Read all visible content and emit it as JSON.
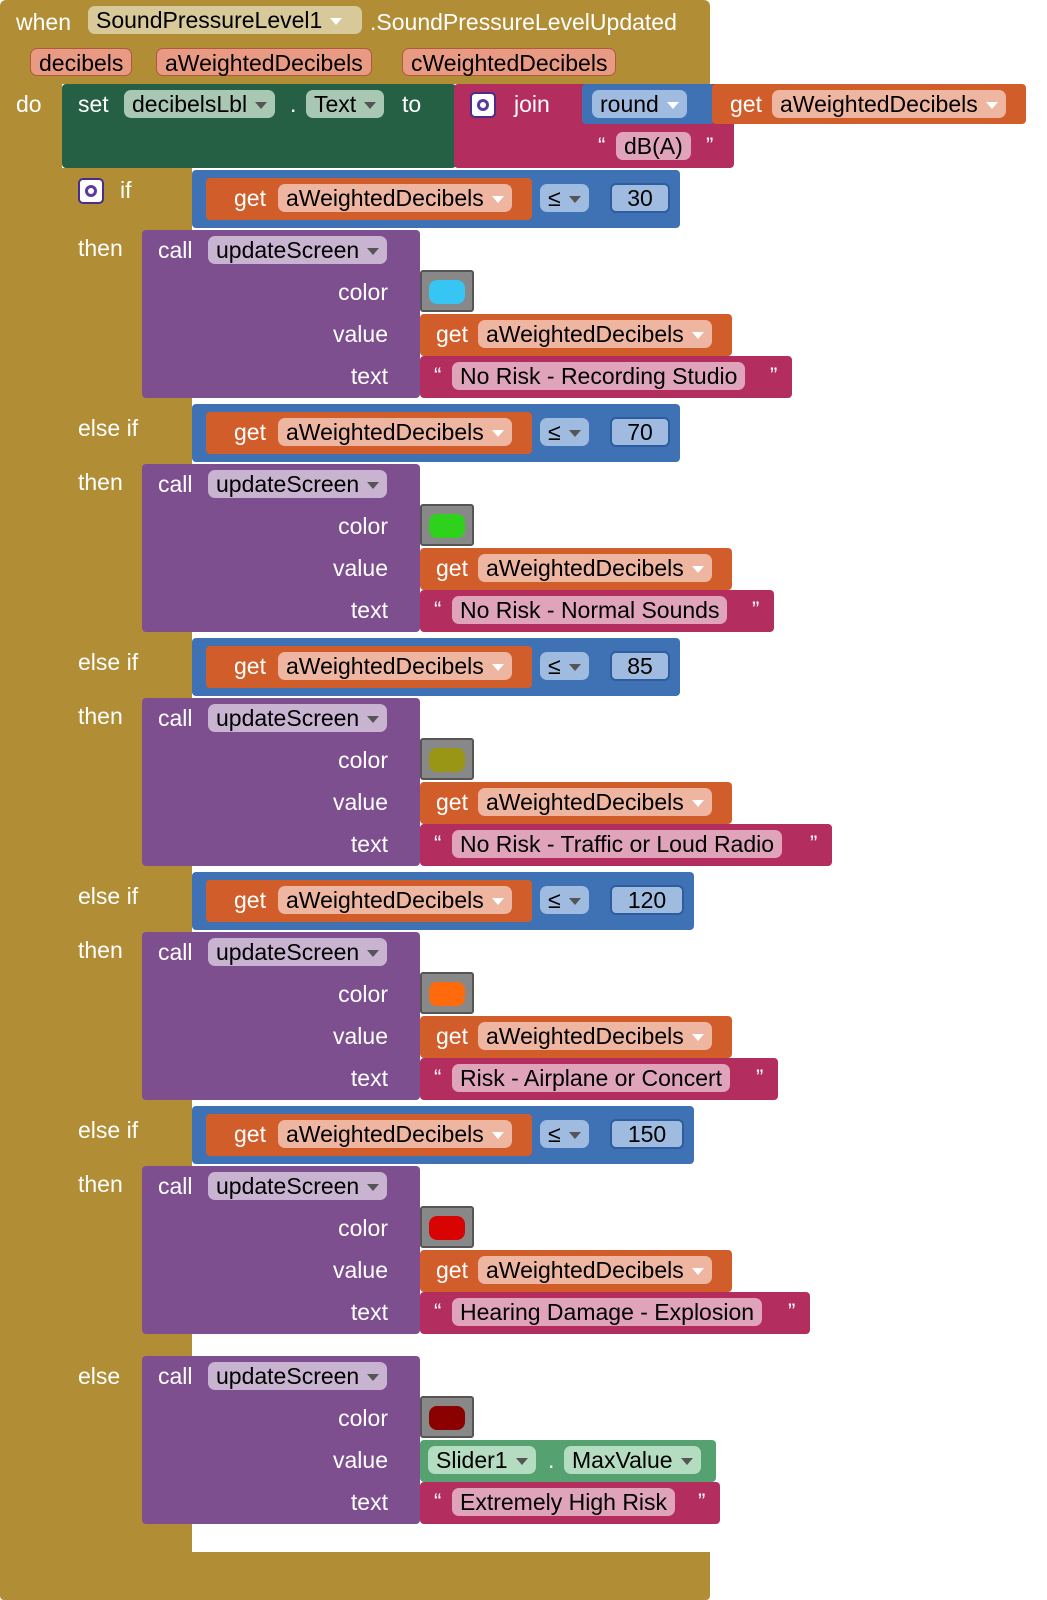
{
  "event": {
    "when_label": "when",
    "component": "SoundPressureLevel1",
    "event_name": ".SoundPressureLevelUpdated",
    "params": [
      "decibels",
      "aWeightedDecibels",
      "cWeightedDecibels"
    ],
    "do_label": "do"
  },
  "set_block": {
    "set_label": "set",
    "component": "decibelsLbl",
    "dot": ".",
    "property": "Text",
    "to_label": "to",
    "join_label": "join",
    "round_label": "round",
    "get_label": "get",
    "var": "aWeightedDecibels",
    "unit_text": "dB(A)"
  },
  "labels": {
    "if": "if",
    "then": "then",
    "else_if": "else if",
    "else": "else",
    "call": "call",
    "get": "get",
    "color": "color",
    "value": "value",
    "text": "text",
    "le": "≤",
    "open_quote": "“",
    "close_quote": "”"
  },
  "procedure": "updateScreen",
  "variable": "aWeightedDecibels",
  "branches": [
    {
      "threshold": "30",
      "color": "#37c5f3",
      "text": "No Risk - Recording Studio"
    },
    {
      "threshold": "70",
      "color": "#2ed11b",
      "text": "No Risk - Normal Sounds"
    },
    {
      "threshold": "85",
      "color": "#999616",
      "text": "No Risk - Traffic or Loud Radio"
    },
    {
      "threshold": "120",
      "color": "#ff6a0c",
      "text": "Risk - Airplane or Concert"
    },
    {
      "threshold": "150",
      "color": "#d80404",
      "text": "Hearing Damage - Explosion"
    }
  ],
  "else_branch": {
    "color": "#8b0000",
    "slider_component": "Slider1",
    "dot": ".",
    "slider_property": "MaxValue",
    "text": "Extremely High Risk"
  }
}
